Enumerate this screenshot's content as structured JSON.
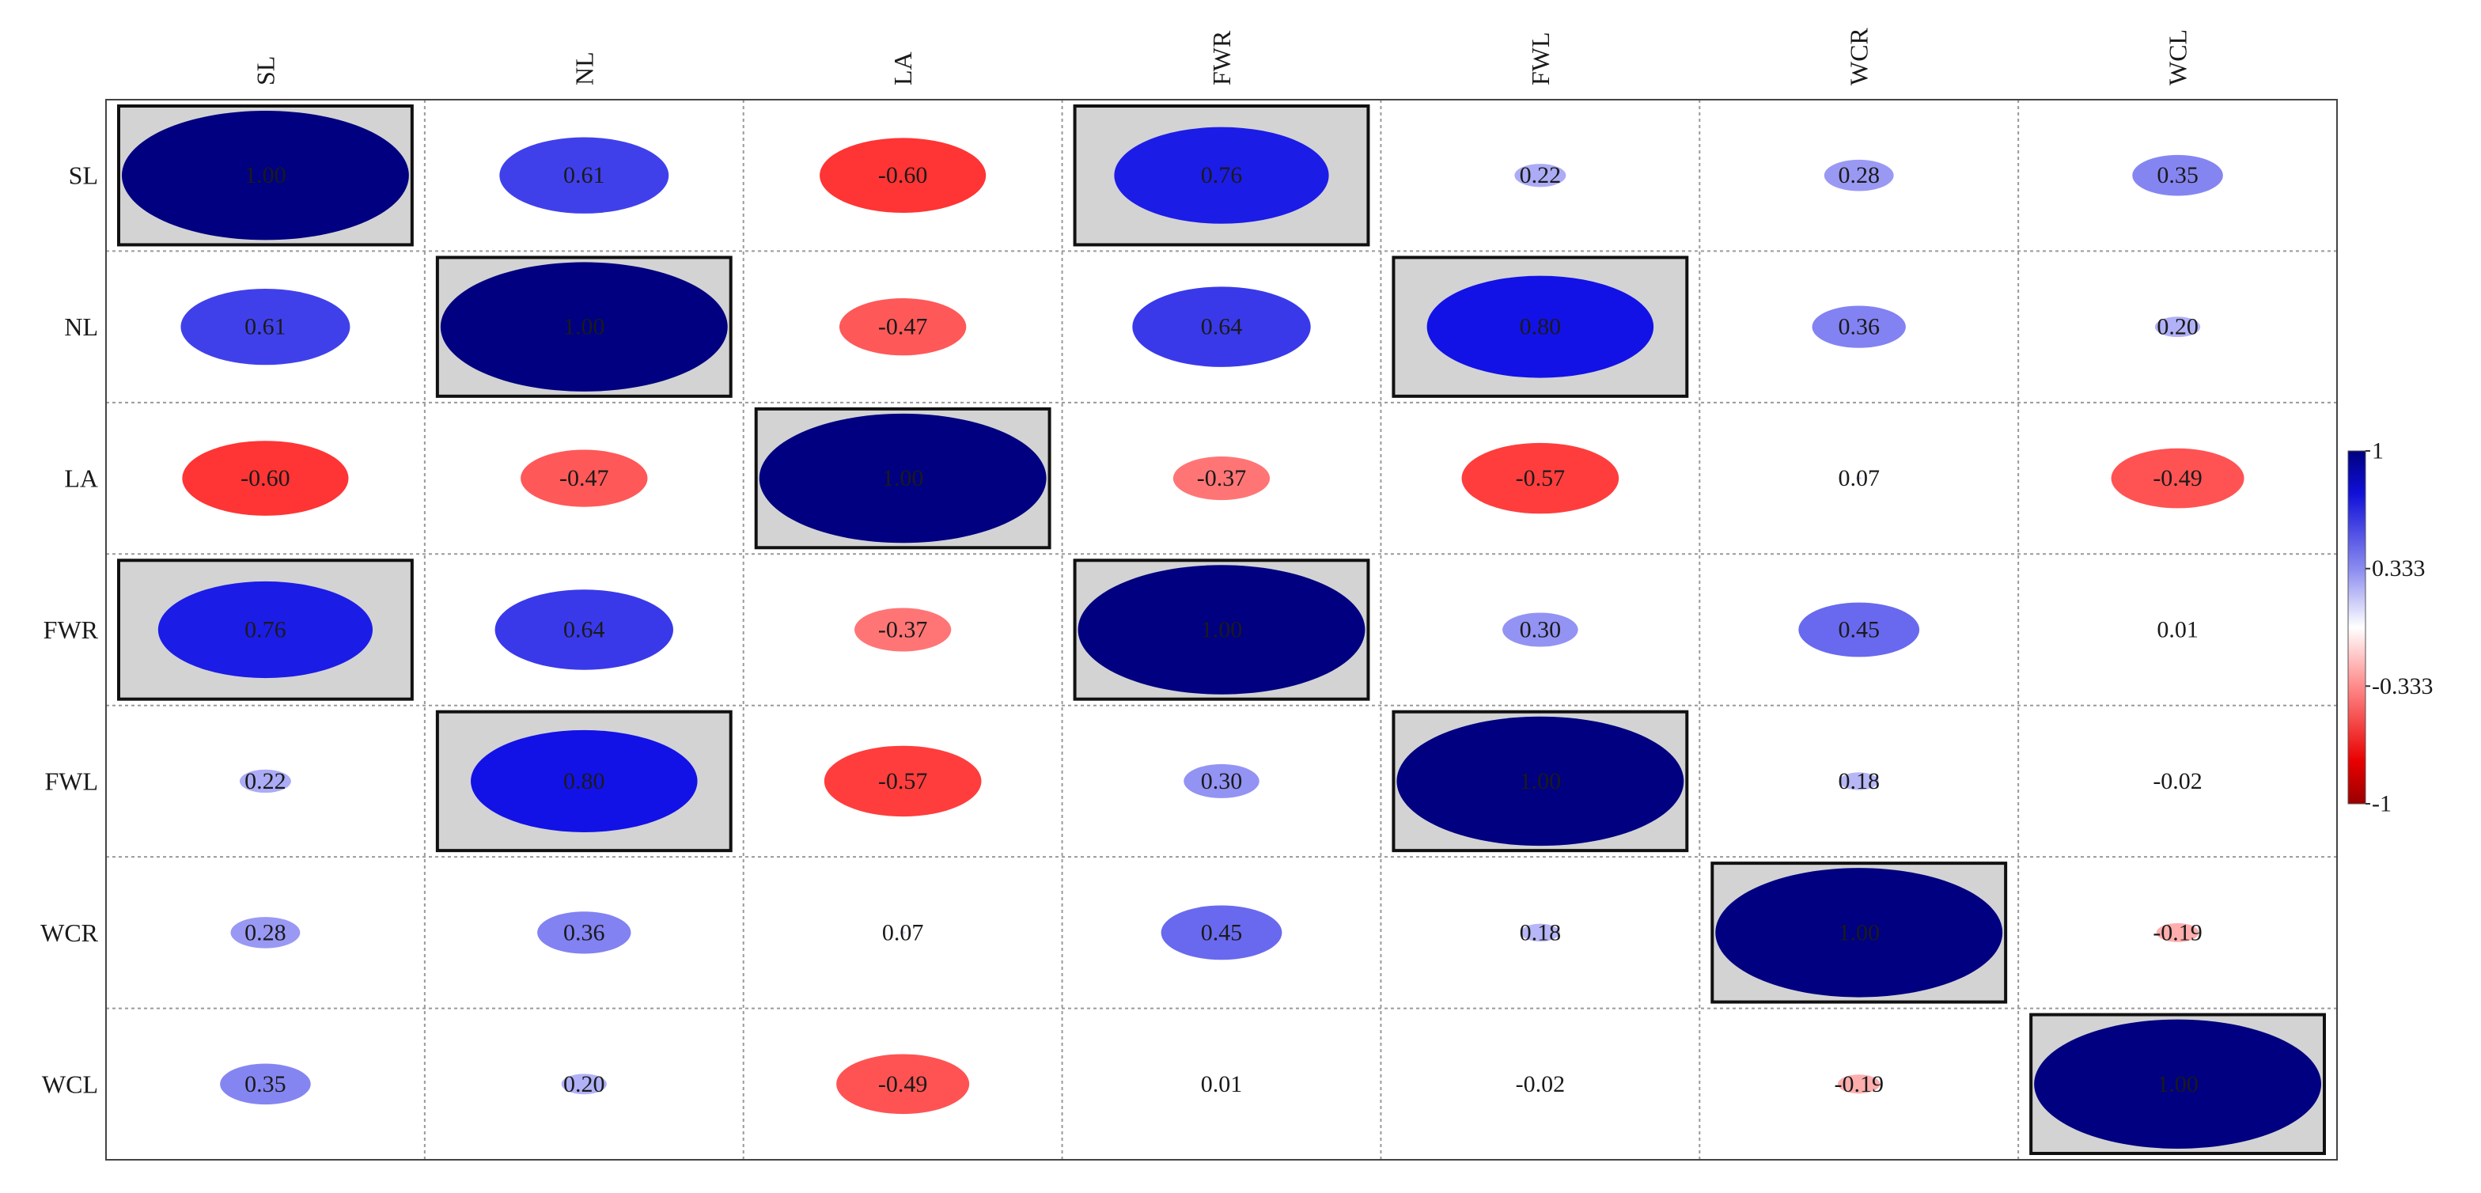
{
  "chart_data": {
    "type": "heatmap",
    "style": "correlation-ellipse",
    "variables": [
      "SL",
      "NL",
      "LA",
      "FWR",
      "FWL",
      "WCR",
      "WCL"
    ],
    "values": [
      [
        1.0,
        0.61,
        -0.6,
        0.76,
        0.22,
        0.28,
        0.35
      ],
      [
        0.61,
        1.0,
        -0.47,
        0.64,
        0.8,
        0.36,
        0.2
      ],
      [
        -0.6,
        -0.47,
        1.0,
        -0.37,
        -0.57,
        0.07,
        -0.49
      ],
      [
        0.76,
        0.64,
        -0.37,
        1.0,
        0.3,
        0.45,
        0.01
      ],
      [
        0.22,
        0.8,
        -0.57,
        0.3,
        1.0,
        0.18,
        -0.02
      ],
      [
        0.28,
        0.36,
        0.07,
        0.45,
        0.18,
        1.0,
        -0.19
      ],
      [
        0.35,
        0.2,
        -0.49,
        0.01,
        -0.02,
        -0.19,
        1.0
      ]
    ],
    "labels": [
      [
        "1.00",
        "0.61",
        "-0.60",
        "0.76",
        "0.22",
        "0.28",
        "0.35"
      ],
      [
        "0.61",
        "1.00",
        "-0.47",
        "0.64",
        "0.80",
        "0.36",
        "0.20"
      ],
      [
        "-0.60",
        "-0.47",
        "1.00",
        "-0.37",
        "-0.57",
        "0.07",
        "-0.49"
      ],
      [
        "0.76",
        "0.64",
        "-0.37",
        "1.00",
        "0.30",
        "0.45",
        "0.01"
      ],
      [
        "0.22",
        "0.80",
        "-0.57",
        "0.30",
        "1.00",
        "0.18",
        "-0.02"
      ],
      [
        "0.28",
        "0.36",
        "0.07",
        "0.45",
        "0.18",
        "1.00",
        "-0.19"
      ],
      [
        "0.35",
        "0.20",
        "-0.49",
        "0.01",
        "-0.02",
        "-0.19",
        "1.00"
      ]
    ],
    "highlighted": [
      [
        0,
        0
      ],
      [
        0,
        3
      ],
      [
        1,
        1
      ],
      [
        1,
        4
      ],
      [
        2,
        2
      ],
      [
        3,
        0
      ],
      [
        3,
        3
      ],
      [
        4,
        1
      ],
      [
        4,
        4
      ],
      [
        5,
        5
      ],
      [
        6,
        6
      ]
    ],
    "value_range": [
      -1,
      1
    ],
    "grid": true,
    "legend": {
      "placement": "right",
      "ticks": [
        {
          "value": 1,
          "label": "1"
        },
        {
          "value": 0.333,
          "label": "0.333"
        },
        {
          "value": -0.333,
          "label": "-0.333"
        },
        {
          "value": -1,
          "label": "-1"
        }
      ]
    },
    "colors": {
      "positive_strong": "#000080",
      "positive": "#1010e0",
      "neutral": "#ffffff",
      "negative": "#ff0000",
      "negative_strong": "#990000",
      "highlight_fill": "#d3d3d3",
      "grid": "#9a9a9a"
    }
  }
}
